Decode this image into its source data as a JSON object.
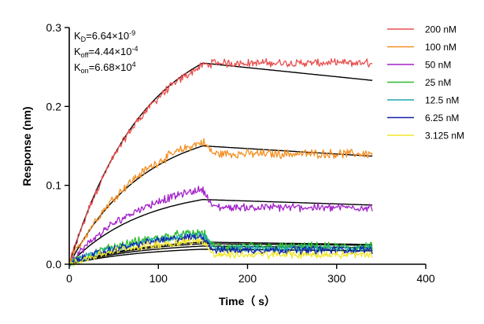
{
  "chart_data": {
    "type": "line",
    "xlabel": "Time（ s）",
    "ylabel": "Response (nm)",
    "xlim": [
      0,
      400
    ],
    "ylim": [
      0,
      0.3
    ],
    "x_ticks": [
      "0",
      "100",
      "200",
      "300",
      "400"
    ],
    "y_ticks": [
      "0.0",
      "0.1",
      "0.2",
      "0.3"
    ],
    "grid": false,
    "legend_position": "right",
    "annotations": {
      "kd": {
        "prefix": "K",
        "sub": "D",
        "main": "=6.64×10",
        "sup": "-9"
      },
      "koff": {
        "prefix": "K",
        "sub": "off",
        "main": "=4.44×10",
        "sup": "-4"
      },
      "kon": {
        "prefix": "K",
        "sub": "on",
        "main": "=6.68×10",
        "sup": "4"
      }
    },
    "association_end_s": 150,
    "end_s": 340,
    "series": [
      {
        "name": "200 nM",
        "color": "#e8504f",
        "peak": 0.252,
        "end": 0.255,
        "fit_peak": 0.255,
        "fit_end": 0.233,
        "noise": 0.004
      },
      {
        "name": "100 nM",
        "color": "#f39024",
        "peak": 0.155,
        "end": 0.14,
        "fit_peak": 0.15,
        "fit_end": 0.137,
        "noise": 0.0045
      },
      {
        "name": "50 nM",
        "color": "#a321c9",
        "peak": 0.095,
        "end": 0.072,
        "fit_peak": 0.082,
        "fit_end": 0.075,
        "noise": 0.004
      },
      {
        "name": "25 nM",
        "color": "#2bbd2b",
        "peak": 0.04,
        "end": 0.022,
        "fit_peak": 0.028,
        "fit_end": 0.025,
        "noise": 0.0045
      },
      {
        "name": "12.5 nM",
        "color": "#1fa6ad",
        "peak": 0.037,
        "end": 0.02,
        "fit_peak": 0.026,
        "fit_end": 0.024,
        "noise": 0.004
      },
      {
        "name": "6.25 nM",
        "color": "#1321a8",
        "peak": 0.035,
        "end": 0.018,
        "fit_peak": 0.023,
        "fit_end": 0.021,
        "noise": 0.004
      },
      {
        "name": "3.125 nM",
        "color": "#f0e62a",
        "peak": 0.03,
        "end": 0.012,
        "fit_peak": 0.019,
        "fit_end": 0.017,
        "noise": 0.004
      }
    ],
    "fit_color": "#000000"
  }
}
